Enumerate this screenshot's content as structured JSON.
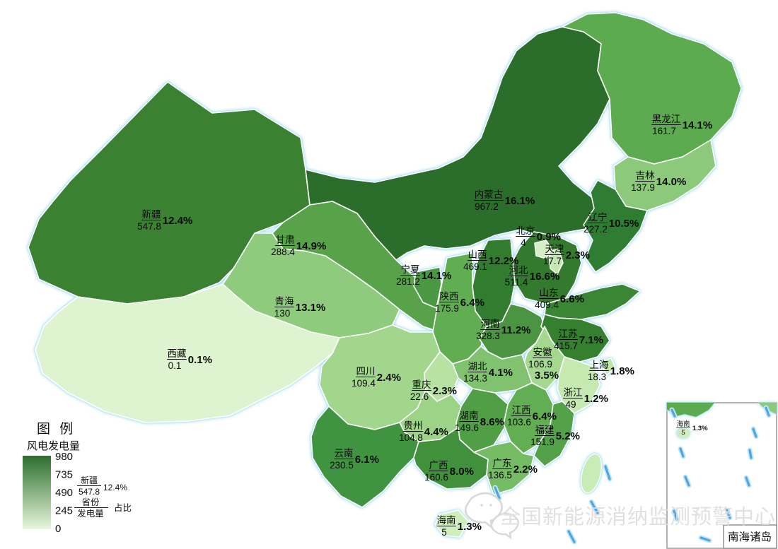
{
  "legend": {
    "title": "图  例",
    "subtitle": "风电发电量",
    "ticks": [
      "980",
      "735",
      "490",
      "245",
      "0"
    ],
    "gradient_top": "#2b6e2b",
    "gradient_bottom": "#e9f7dd",
    "example": {
      "name": "新疆",
      "value": "547.8",
      "pct": "12.4%"
    },
    "key": {
      "name_label": "省份",
      "value_label": "发电量",
      "pct_label": "占比"
    }
  },
  "watermark": {
    "text": "全国新能源消纳监测预警中心",
    "icon": "wechat-icon"
  },
  "inset": {
    "label": "南海诸岛",
    "hainan": {
      "name": "海南",
      "value": "5",
      "pct": "1.3%"
    }
  },
  "provinces": [
    {
      "id": "xinjiang",
      "name": "新疆",
      "value": "547.8",
      "pct": "12.4%",
      "fill": "#3a8132"
    },
    {
      "id": "xizang",
      "name": "西藏",
      "value": "0.1",
      "pct": "0.1%",
      "fill": "#def3d0"
    },
    {
      "id": "qinghai",
      "name": "青海",
      "value": "130",
      "pct": "13.1%",
      "fill": "#8fcb7d"
    },
    {
      "id": "gansu",
      "name": "甘肃",
      "value": "288.4",
      "pct": "14.9%",
      "fill": "#58a34a"
    },
    {
      "id": "neimenggu",
      "name": "内蒙古",
      "value": "967.2",
      "pct": "16.1%",
      "fill": "#2b6e2b"
    },
    {
      "id": "heilongjiang",
      "name": "黑龙江",
      "value": "161.7",
      "pct": "14.1%",
      "fill": "#5cab4e"
    },
    {
      "id": "jilin",
      "name": "吉林",
      "value": "137.9",
      "pct": "14.0%",
      "fill": "#8cc97b"
    },
    {
      "id": "liaoning",
      "name": "辽宁",
      "value": "227.2",
      "pct": "10.5%",
      "fill": "#2e7d33"
    },
    {
      "id": "beijing",
      "name": "北京",
      "value": "4",
      "pct": "0.9%",
      "fill": "#d6f0c5"
    },
    {
      "id": "tianjin",
      "name": "天津",
      "value": "17.7",
      "pct": "2.3%",
      "fill": "#c4e8af"
    },
    {
      "id": "hebei",
      "name": "河北",
      "value": "511.4",
      "pct": "16.6%",
      "fill": "#337a2e"
    },
    {
      "id": "shanxi",
      "name": "山西",
      "value": "469.1",
      "pct": "12.2%",
      "fill": "#327c30"
    },
    {
      "id": "shandong",
      "name": "山东",
      "value": "409.4",
      "pct": "6.6%",
      "fill": "#3b8635"
    },
    {
      "id": "shaanxi",
      "name": "陕西",
      "value": "175.9",
      "pct": "6.4%",
      "fill": "#61ae52"
    },
    {
      "id": "ningxia",
      "name": "宁夏",
      "value": "281.2",
      "pct": "14.1%",
      "fill": "#4b9843"
    },
    {
      "id": "henan",
      "name": "河南",
      "value": "328.3",
      "pct": "11.2%",
      "fill": "#4b9441"
    },
    {
      "id": "jiangsu",
      "name": "江苏",
      "value": "415.7",
      "pct": "7.1%",
      "fill": "#35802f"
    },
    {
      "id": "anhui",
      "name": "安徽",
      "value": "106.9",
      "pct": "3.5%",
      "fill": "#a3d88e"
    },
    {
      "id": "shanghai",
      "name": "上海",
      "value": "18.3",
      "pct": "1.8%",
      "fill": "#c0e6aa"
    },
    {
      "id": "zhejiang",
      "name": "浙江",
      "value": "49",
      "pct": "1.2%",
      "fill": "#c5e9b1"
    },
    {
      "id": "hubei",
      "name": "湖北",
      "value": "134.3",
      "pct": "4.1%",
      "fill": "#80c26f"
    },
    {
      "id": "chongqing",
      "name": "重庆",
      "value": "22.6",
      "pct": "2.3%",
      "fill": "#b7e2a1"
    },
    {
      "id": "sichuan",
      "name": "四川",
      "value": "109.4",
      "pct": "2.4%",
      "fill": "#a1d68c"
    },
    {
      "id": "guizhou",
      "name": "贵州",
      "value": "104.8",
      "pct": "4.4%",
      "fill": "#9dd387"
    },
    {
      "id": "hunan",
      "name": "湖南",
      "value": "149.6",
      "pct": "8.6%",
      "fill": "#509e46"
    },
    {
      "id": "jiangxi",
      "name": "江西",
      "value": "103.6",
      "pct": "6.4%",
      "fill": "#61ae53"
    },
    {
      "id": "fujian",
      "name": "福建",
      "value": "151.9",
      "pct": "5.2%",
      "fill": "#53a149"
    },
    {
      "id": "guangdong",
      "name": "广东",
      "value": "136.5",
      "pct": "2.2%",
      "fill": "#75bc64"
    },
    {
      "id": "guangxi",
      "name": "广西",
      "value": "160.6",
      "pct": "8.0%",
      "fill": "#40903c"
    },
    {
      "id": "yunnan",
      "name": "云南",
      "value": "230.5",
      "pct": "6.1%",
      "fill": "#409341"
    },
    {
      "id": "hainan",
      "name": "海南",
      "value": "5",
      "pct": "1.3%",
      "fill": "#cfeebc"
    }
  ],
  "chart_data": {
    "type": "heatmap",
    "subtype": "choropleth-map-of-china",
    "title": "风电发电量",
    "legend_title": "图 例",
    "value_label": "发电量",
    "pct_label": "占比",
    "name_label": "省份",
    "color_scale_ticks": [
      0,
      245,
      490,
      735,
      980
    ],
    "color_scale": {
      "low": "#e9f7dd",
      "high": "#2b6e2b"
    },
    "data": [
      {
        "province": "新疆",
        "value": 547.8,
        "pct": 12.4
      },
      {
        "province": "西藏",
        "value": 0.1,
        "pct": 0.1
      },
      {
        "province": "青海",
        "value": 130,
        "pct": 13.1
      },
      {
        "province": "甘肃",
        "value": 288.4,
        "pct": 14.9
      },
      {
        "province": "内蒙古",
        "value": 967.2,
        "pct": 16.1
      },
      {
        "province": "黑龙江",
        "value": 161.7,
        "pct": 14.1
      },
      {
        "province": "吉林",
        "value": 137.9,
        "pct": 14.0
      },
      {
        "province": "辽宁",
        "value": 227.2,
        "pct": 10.5
      },
      {
        "province": "北京",
        "value": 4,
        "pct": 0.9
      },
      {
        "province": "天津",
        "value": 17.7,
        "pct": 2.3
      },
      {
        "province": "河北",
        "value": 511.4,
        "pct": 16.6
      },
      {
        "province": "山西",
        "value": 469.1,
        "pct": 12.2
      },
      {
        "province": "山东",
        "value": 409.4,
        "pct": 6.6
      },
      {
        "province": "陕西",
        "value": 175.9,
        "pct": 6.4
      },
      {
        "province": "宁夏",
        "value": 281.2,
        "pct": 14.1
      },
      {
        "province": "河南",
        "value": 328.3,
        "pct": 11.2
      },
      {
        "province": "江苏",
        "value": 415.7,
        "pct": 7.1
      },
      {
        "province": "安徽",
        "value": 106.9,
        "pct": 3.5
      },
      {
        "province": "上海",
        "value": 18.3,
        "pct": 1.8
      },
      {
        "province": "浙江",
        "value": 49,
        "pct": 1.2
      },
      {
        "province": "湖北",
        "value": 134.3,
        "pct": 4.1
      },
      {
        "province": "重庆",
        "value": 22.6,
        "pct": 2.3
      },
      {
        "province": "四川",
        "value": 109.4,
        "pct": 2.4
      },
      {
        "province": "贵州",
        "value": 104.8,
        "pct": 4.4
      },
      {
        "province": "湖南",
        "value": 149.6,
        "pct": 8.6
      },
      {
        "province": "江西",
        "value": 103.6,
        "pct": 6.4
      },
      {
        "province": "福建",
        "value": 151.9,
        "pct": 5.2
      },
      {
        "province": "广东",
        "value": 136.5,
        "pct": 2.2
      },
      {
        "province": "广西",
        "value": 160.6,
        "pct": 8.0
      },
      {
        "province": "云南",
        "value": 230.5,
        "pct": 6.1
      },
      {
        "province": "海南",
        "value": 5,
        "pct": 1.3
      }
    ]
  }
}
